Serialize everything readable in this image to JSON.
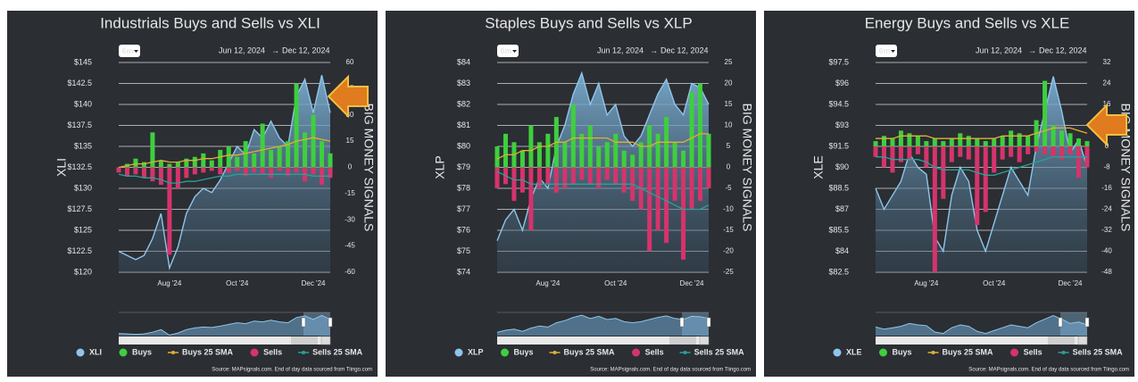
{
  "chart_data": [
    {
      "type": "combo",
      "title": "Industrials Buys and Sells vs XLI",
      "range_selector": {
        "button": "6m",
        "from": "Jun 12, 2024",
        "to": "Dec 12, 2024"
      },
      "source": "Source: MAPsignals.com. End of day data sourced from Tiingo.com",
      "ylabel": "XLI",
      "y2label": "BIG MONEY SIGNALS",
      "categories": [
        null,
        null,
        null,
        null,
        null,
        null,
        "Aug '24",
        null,
        null,
        null,
        null,
        null,
        null,
        null,
        "Oct '24",
        null,
        null,
        null,
        null,
        null,
        null,
        null,
        null,
        "Dec '24",
        null,
        null
      ],
      "ylim": [
        120,
        145
      ],
      "yticks": [
        {
          "value": 145,
          "label": "$145"
        },
        {
          "value": 142.5,
          "label": "$142.5"
        },
        {
          "value": 140,
          "label": "$140"
        },
        {
          "value": 137.5,
          "label": "$137.5"
        },
        {
          "value": 135,
          "label": "$135"
        },
        {
          "value": 132.5,
          "label": "$132.5"
        },
        {
          "value": 130,
          "label": "$130"
        },
        {
          "value": 127.5,
          "label": "$127.5"
        },
        {
          "value": 125,
          "label": "$125"
        },
        {
          "value": 122.5,
          "label": "$122.5"
        },
        {
          "value": 120,
          "label": "$120"
        }
      ],
      "y2lim": [
        -60,
        60
      ],
      "y2ticks": [
        60,
        45,
        30,
        15,
        0,
        -15,
        -30,
        -45,
        -60
      ],
      "grid": true,
      "series": [
        {
          "name": "XLI",
          "type": "area",
          "color": "#8ec5ea",
          "values": [
            122.5,
            122,
            121.5,
            122,
            124,
            127,
            120.5,
            123,
            127,
            129,
            130,
            129.5,
            131,
            133,
            135,
            134,
            137,
            136,
            138,
            136,
            135,
            141,
            143,
            139,
            143.5,
            139
          ]
        },
        {
          "name": "Buys",
          "type": "bar",
          "axis": "y2",
          "color": "#3ecf3e",
          "values": [
            0,
            2,
            5,
            3,
            20,
            4,
            2,
            3,
            5,
            6,
            8,
            4,
            10,
            12,
            6,
            15,
            8,
            25,
            10,
            12,
            15,
            48,
            20,
            30,
            15,
            8
          ]
        },
        {
          "name": "Buys 25 SMA",
          "type": "line",
          "axis": "y2",
          "color": "#e0b030",
          "values": [
            0,
            1,
            2,
            2,
            3,
            4,
            3,
            3,
            4,
            4,
            5,
            5,
            6,
            7,
            7,
            8,
            9,
            10,
            11,
            12,
            13,
            15,
            16,
            17,
            16,
            15
          ]
        },
        {
          "name": "Sells",
          "type": "bar",
          "axis": "y2",
          "color": "#d6336c",
          "values": [
            -3,
            -5,
            -4,
            -6,
            -8,
            -10,
            -50,
            -12,
            -6,
            -4,
            -3,
            -2,
            -4,
            -3,
            -2,
            -5,
            -3,
            -4,
            -6,
            -2,
            -5,
            -3,
            -8,
            -4,
            -10,
            -6
          ]
        },
        {
          "name": "Sells 25 SMA",
          "type": "line",
          "axis": "y2",
          "color": "#2aa198",
          "values": [
            -4,
            -5,
            -5,
            -6,
            -6,
            -7,
            -9,
            -9,
            -8,
            -8,
            -7,
            -6,
            -5,
            -5,
            -4,
            -4,
            -4,
            -4,
            -4,
            -4,
            -4,
            -4,
            -4,
            -5,
            -5,
            -5
          ]
        }
      ]
    },
    {
      "type": "combo",
      "title": "Staples Buys and Sells vs XLP",
      "range_selector": {
        "button": "6m",
        "from": "Jun 12, 2024",
        "to": "Dec 12, 2024"
      },
      "source": "Source: MAPsignals.com. End of day data sourced from Tiingo.com",
      "ylabel": "XLP",
      "y2label": "BIG MONEY SIGNALS",
      "categories": [
        null,
        null,
        null,
        null,
        null,
        null,
        "Aug '24",
        null,
        null,
        null,
        null,
        null,
        null,
        null,
        "Oct '24",
        null,
        null,
        null,
        null,
        null,
        null,
        null,
        null,
        "Dec '24",
        null,
        null
      ],
      "ylim": [
        74,
        84
      ],
      "yticks": [
        {
          "value": 84,
          "label": "$84"
        },
        {
          "value": 83,
          "label": "$83"
        },
        {
          "value": 82,
          "label": "$82"
        },
        {
          "value": 81,
          "label": "$81"
        },
        {
          "value": 80,
          "label": "$80"
        },
        {
          "value": 79,
          "label": "$79"
        },
        {
          "value": 78,
          "label": "$78"
        },
        {
          "value": 77,
          "label": "$77"
        },
        {
          "value": 76,
          "label": "$76"
        },
        {
          "value": 75,
          "label": "$75"
        },
        {
          "value": 74,
          "label": "$74"
        }
      ],
      "y2lim": [
        -25,
        25
      ],
      "y2ticks": [
        25,
        20,
        15,
        10,
        5,
        0,
        -5,
        -10,
        -15,
        -20,
        -25
      ],
      "grid": true,
      "series": [
        {
          "name": "XLP",
          "type": "area",
          "color": "#8ec5ea",
          "values": [
            75.5,
            76.5,
            77,
            76,
            77.5,
            78.5,
            78,
            80,
            81,
            82.5,
            83.5,
            82,
            83,
            81.5,
            82,
            80.5,
            80,
            80.5,
            81.5,
            82.5,
            83.2,
            82,
            81.5,
            83,
            82.8,
            82
          ]
        },
        {
          "name": "Buys",
          "type": "bar",
          "axis": "y2",
          "color": "#3ecf3e",
          "values": [
            5,
            8,
            6,
            4,
            10,
            6,
            8,
            12,
            6,
            15,
            8,
            10,
            5,
            6,
            8,
            4,
            3,
            6,
            10,
            8,
            12,
            6,
            4,
            18,
            20,
            8
          ]
        },
        {
          "name": "Buys 25 SMA",
          "type": "line",
          "axis": "y2",
          "color": "#e0b030",
          "values": [
            2,
            3,
            3,
            4,
            4,
            5,
            5,
            6,
            6,
            7,
            7,
            7,
            7,
            7,
            6,
            6,
            6,
            5,
            5,
            6,
            6,
            6,
            6,
            7,
            8,
            8
          ]
        },
        {
          "name": "Sells",
          "type": "bar",
          "axis": "y2",
          "color": "#d6336c",
          "values": [
            -5,
            -4,
            -8,
            -6,
            -15,
            -5,
            -4,
            -6,
            -5,
            -4,
            -3,
            -4,
            -5,
            -3,
            -4,
            -6,
            -8,
            -10,
            -20,
            -15,
            -18,
            -8,
            -22,
            -10,
            -8,
            -5
          ]
        },
        {
          "name": "Sells 25 SMA",
          "type": "line",
          "axis": "y2",
          "color": "#2aa198",
          "values": [
            -1,
            -2,
            -3,
            -3,
            -4,
            -4,
            -4,
            -4,
            -4,
            -4,
            -4,
            -4,
            -4,
            -4,
            -4,
            -4,
            -4,
            -5,
            -6,
            -7,
            -8,
            -9,
            -10,
            -10,
            -10,
            -9
          ]
        }
      ]
    },
    {
      "type": "combo",
      "title": "Energy Buys and Sells vs XLE",
      "range_selector": {
        "button": "6m",
        "from": "Jun 12, 2024",
        "to": "Dec 12, 2024"
      },
      "source": "Source: MAPsignals.com. End of day data sourced from Tiingo.com",
      "ylabel": "XLE",
      "y2label": "BIG MONEY SIGNALS",
      "categories": [
        null,
        null,
        null,
        null,
        null,
        null,
        "Aug '24",
        null,
        null,
        null,
        null,
        null,
        null,
        null,
        "Oct '24",
        null,
        null,
        null,
        null,
        null,
        null,
        null,
        null,
        "Dec '24",
        null,
        null
      ],
      "ylim": [
        82.5,
        97.5
      ],
      "yticks": [
        {
          "value": 97.5,
          "label": "$97.5"
        },
        {
          "value": 96,
          "label": "$96"
        },
        {
          "value": 94.5,
          "label": "$94.5"
        },
        {
          "value": 93,
          "label": "$93"
        },
        {
          "value": 91.5,
          "label": "$91.5"
        },
        {
          "value": 90,
          "label": "$90"
        },
        {
          "value": 88.5,
          "label": "$88.5"
        },
        {
          "value": 87,
          "label": "$87"
        },
        {
          "value": 85.5,
          "label": "$85.5"
        },
        {
          "value": 84,
          "label": "$84"
        },
        {
          "value": 82.5,
          "label": "$82.5"
        }
      ],
      "y2lim": [
        -48,
        32
      ],
      "y2ticks": [
        32,
        24,
        16,
        8,
        0,
        -8,
        -16,
        -24,
        -32,
        -40,
        -48
      ],
      "grid": true,
      "series": [
        {
          "name": "XLE",
          "type": "area",
          "color": "#8ec5ea",
          "values": [
            88.5,
            87,
            88,
            89,
            91,
            90,
            89.5,
            85,
            84,
            88,
            90,
            89,
            85.5,
            84,
            86,
            88,
            90,
            89,
            88,
            91.5,
            94,
            96.5,
            94,
            91,
            92,
            90
          ]
        },
        {
          "name": "Buys",
          "type": "bar",
          "axis": "y2",
          "color": "#3ecf3e",
          "values": [
            2,
            4,
            3,
            6,
            5,
            4,
            2,
            3,
            2,
            3,
            5,
            4,
            3,
            2,
            3,
            4,
            6,
            5,
            4,
            10,
            25,
            8,
            6,
            5,
            3,
            2
          ]
        },
        {
          "name": "Buys 25 SMA",
          "type": "line",
          "axis": "y2",
          "color": "#e0b030",
          "values": [
            3,
            3,
            3,
            4,
            4,
            4,
            4,
            3,
            3,
            3,
            3,
            3,
            3,
            3,
            3,
            4,
            4,
            4,
            4,
            5,
            6,
            7,
            7,
            7,
            6,
            5
          ]
        },
        {
          "name": "Sells",
          "type": "bar",
          "axis": "y2",
          "color": "#d6336c",
          "values": [
            -4,
            -8,
            -10,
            -6,
            -5,
            -3,
            -8,
            -48,
            -20,
            -6,
            -4,
            -5,
            -30,
            -25,
            -10,
            -5,
            -4,
            -6,
            -3,
            -2,
            -3,
            -4,
            -5,
            -3,
            -12,
            -8
          ]
        },
        {
          "name": "Sells 25 SMA",
          "type": "line",
          "axis": "y2",
          "color": "#2aa198",
          "values": [
            -4,
            -4,
            -5,
            -5,
            -5,
            -5,
            -6,
            -8,
            -9,
            -9,
            -9,
            -9,
            -10,
            -11,
            -11,
            -10,
            -9,
            -8,
            -7,
            -6,
            -5,
            -4,
            -4,
            -4,
            -4,
            -4
          ]
        }
      ]
    }
  ]
}
